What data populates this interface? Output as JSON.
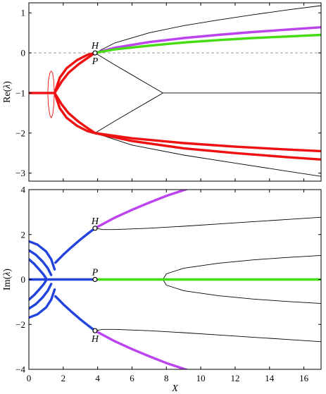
{
  "colors": {
    "black_branch": "#000000",
    "red": "#ee1111",
    "purple": "#bb44ee",
    "green": "#44dd11",
    "blue": "#2244dd",
    "zero_line": "#888888"
  },
  "chart_data": [
    {
      "type": "line",
      "ylabel_prefix": "Re(",
      "ylabel_symbol": "λ",
      "ylabel_suffix": ")",
      "xlim": [
        0,
        17
      ],
      "ylim": [
        -3.2,
        1.25
      ],
      "xticks": [
        0,
        2,
        4,
        6,
        8,
        10,
        12,
        14,
        16
      ],
      "yticks": [
        1,
        0,
        -1,
        -2,
        -3
      ],
      "ytick_labels": [
        "1",
        "0",
        "−1",
        "−2",
        "−3"
      ],
      "reference_line": {
        "y": 0,
        "style": "dashed"
      },
      "annotations": [
        {
          "text": "H",
          "x": 3.85,
          "y": 0,
          "position": "above"
        },
        {
          "text": "P",
          "x": 3.85,
          "y": 0,
          "position": "below"
        }
      ],
      "markers": [
        {
          "x": 3.85,
          "y": 0,
          "shape": "open-circle"
        }
      ],
      "series": [
        {
          "color": "black",
          "width": "thin",
          "x": [
            3.85,
            5,
            7,
            9,
            11,
            13,
            15,
            17
          ],
          "y": [
            0,
            0.25,
            0.5,
            0.68,
            0.82,
            0.95,
            1.07,
            1.18
          ]
        },
        {
          "color": "purple",
          "width": "thick",
          "x": [
            3.85,
            5,
            7,
            9,
            11,
            13,
            15,
            17
          ],
          "y": [
            0,
            0.13,
            0.27,
            0.37,
            0.45,
            0.52,
            0.58,
            0.64
          ]
        },
        {
          "color": "green",
          "width": "thick",
          "x": [
            3.85,
            5,
            7,
            9,
            11,
            13,
            15,
            17
          ],
          "y": [
            0,
            0.09,
            0.18,
            0.26,
            0.32,
            0.37,
            0.41,
            0.45
          ]
        },
        {
          "color": "black",
          "width": "thin",
          "x": [
            3.85,
            5,
            6,
            7,
            7.8
          ],
          "y": [
            0,
            -0.3,
            -0.55,
            -0.8,
            -1.0
          ]
        },
        {
          "color": "black",
          "width": "thin",
          "x": [
            3.85,
            5,
            6,
            7,
            7.8
          ],
          "y": [
            -2,
            -1.7,
            -1.45,
            -1.2,
            -1.0
          ]
        },
        {
          "color": "black",
          "width": "thin",
          "x": [
            7.8,
            17
          ],
          "y": [
            -1,
            -1
          ]
        },
        {
          "color": "black",
          "width": "thin",
          "x": [
            3.85,
            6,
            9,
            12,
            15,
            17
          ],
          "y": [
            -2,
            -2.3,
            -2.55,
            -2.75,
            -2.95,
            -3.08
          ]
        },
        {
          "color": "red",
          "width": "thick",
          "x": [
            3.85,
            6,
            9,
            12,
            15,
            17
          ],
          "y": [
            -2,
            -2.13,
            -2.25,
            -2.34,
            -2.41,
            -2.45
          ]
        },
        {
          "color": "red",
          "width": "thick",
          "x": [
            3.85,
            6,
            9,
            12,
            15,
            17
          ],
          "y": [
            -2,
            -2.2,
            -2.38,
            -2.5,
            -2.6,
            -2.66
          ]
        },
        {
          "color": "red",
          "width": "thick",
          "x": [
            0,
            1.5
          ],
          "y": [
            -1,
            -1
          ]
        },
        {
          "color": "red",
          "width": "thick",
          "x": [
            1.5,
            1.8,
            2.2,
            2.8,
            3.4,
            3.85
          ],
          "y": [
            -1,
            -0.62,
            -0.38,
            -0.18,
            -0.05,
            0
          ]
        },
        {
          "color": "red",
          "width": "thick",
          "x": [
            1.5,
            1.9,
            2.3,
            2.9,
            3.5,
            3.85
          ],
          "y": [
            -1,
            -0.72,
            -0.5,
            -0.28,
            -0.1,
            0
          ]
        },
        {
          "color": "red",
          "width": "thick",
          "x": [
            1.5,
            1.8,
            2.2,
            2.8,
            3.4,
            3.85
          ],
          "y": [
            -1,
            -1.38,
            -1.62,
            -1.82,
            -1.95,
            -2
          ]
        },
        {
          "color": "red",
          "width": "thick",
          "x": [
            1.5,
            1.9,
            2.3,
            2.9,
            3.5,
            3.85
          ],
          "y": [
            -1,
            -1.28,
            -1.5,
            -1.72,
            -1.9,
            -2
          ]
        },
        {
          "color": "red",
          "width": "thin",
          "x": [
            1.1,
            1.13,
            1.22,
            1.3,
            1.38,
            1.45,
            1.48,
            1.45,
            1.38,
            1.3,
            1.22,
            1.13,
            1.1
          ],
          "y": [
            -1,
            -0.7,
            -0.5,
            -0.45,
            -0.5,
            -0.7,
            -1,
            -1.3,
            -1.55,
            -1.62,
            -1.55,
            -1.3,
            -1
          ]
        }
      ]
    },
    {
      "type": "line",
      "xlabel": "X",
      "ylabel_prefix": "Im(",
      "ylabel_symbol": "λ",
      "ylabel_suffix": ")",
      "xlim": [
        0,
        17
      ],
      "ylim": [
        -4,
        4
      ],
      "xticks": [
        0,
        2,
        4,
        6,
        8,
        10,
        12,
        14,
        16
      ],
      "xtick_labels": [
        "0",
        "2",
        "4",
        "6",
        "8",
        "10",
        "12",
        "14",
        "16"
      ],
      "yticks": [
        4,
        2,
        0,
        -2,
        -4
      ],
      "ytick_labels": [
        "4",
        "2",
        "0",
        "−2",
        "−4"
      ],
      "annotations": [
        {
          "text": "H",
          "x": 3.85,
          "y": 2.28,
          "position": "above"
        },
        {
          "text": "P",
          "x": 3.85,
          "y": 0,
          "position": "above"
        },
        {
          "text": "H",
          "x": 3.85,
          "y": -2.28,
          "position": "below"
        }
      ],
      "markers": [
        {
          "x": 3.85,
          "y": 2.28,
          "shape": "open-circle"
        },
        {
          "x": 3.85,
          "y": 0,
          "shape": "open-circle"
        },
        {
          "x": 3.85,
          "y": -2.28,
          "shape": "open-circle"
        }
      ],
      "series": [
        {
          "color": "purple",
          "width": "thick",
          "x": [
            3.85,
            5,
            6,
            7,
            8,
            9.3
          ],
          "y": [
            2.28,
            2.75,
            3.1,
            3.42,
            3.72,
            4.05
          ]
        },
        {
          "color": "purple",
          "width": "thick",
          "x": [
            3.85,
            5,
            6,
            7,
            8,
            9.3
          ],
          "y": [
            -2.28,
            -2.75,
            -3.1,
            -3.42,
            -3.72,
            -4.05
          ]
        },
        {
          "color": "black",
          "width": "thin",
          "x": [
            3.85,
            4.3,
            5,
            7,
            9,
            11,
            13,
            15,
            17
          ],
          "y": [
            2.28,
            2.22,
            2.22,
            2.28,
            2.37,
            2.47,
            2.57,
            2.67,
            2.77
          ]
        },
        {
          "color": "black",
          "width": "thin",
          "x": [
            3.85,
            4.3,
            5,
            7,
            9,
            11,
            13,
            15,
            17
          ],
          "y": [
            -2.28,
            -2.22,
            -2.22,
            -2.28,
            -2.37,
            -2.47,
            -2.57,
            -2.67,
            -2.77
          ]
        },
        {
          "color": "black",
          "width": "thin",
          "x": [
            7.8,
            8,
            9,
            11,
            13,
            15,
            17
          ],
          "y": [
            0,
            0.25,
            0.5,
            0.72,
            0.87,
            0.98,
            1.07
          ]
        },
        {
          "color": "black",
          "width": "thin",
          "x": [
            7.8,
            8,
            9,
            11,
            13,
            15,
            17
          ],
          "y": [
            0,
            -0.25,
            -0.5,
            -0.72,
            -0.87,
            -0.98,
            -1.07
          ]
        },
        {
          "color": "black",
          "width": "thin",
          "x": [
            3.85,
            7.8
          ],
          "y": [
            0,
            0
          ]
        },
        {
          "color": "green",
          "width": "thick",
          "x": [
            3.85,
            17
          ],
          "y": [
            0,
            0
          ]
        },
        {
          "color": "blue",
          "width": "thick",
          "x": [
            0,
            3.85
          ],
          "y": [
            0,
            0
          ]
        },
        {
          "color": "blue",
          "width": "thick",
          "x": [
            1.55,
            2,
            2.5,
            3,
            3.5,
            3.85
          ],
          "y": [
            0.75,
            1.1,
            1.45,
            1.78,
            2.08,
            2.28
          ]
        },
        {
          "color": "blue",
          "width": "thick",
          "x": [
            1.55,
            2,
            2.5,
            3,
            3.5,
            3.85
          ],
          "y": [
            -0.75,
            -1.1,
            -1.45,
            -1.78,
            -2.08,
            -2.28
          ]
        },
        {
          "color": "blue",
          "width": "thick",
          "x": [
            0,
            0.5,
            1,
            1.3,
            1.5
          ],
          "y": [
            1.7,
            1.55,
            1.25,
            0.9,
            0.45
          ]
        },
        {
          "color": "blue",
          "width": "thick",
          "x": [
            0,
            0.5,
            1,
            1.3,
            1.5
          ],
          "y": [
            -1.7,
            -1.55,
            -1.25,
            -0.9,
            -0.45
          ]
        },
        {
          "color": "blue",
          "width": "thick",
          "x": [
            0,
            0.4,
            0.8,
            1.1,
            1.3
          ],
          "y": [
            1.3,
            1.1,
            0.8,
            0.5,
            0.2
          ]
        },
        {
          "color": "blue",
          "width": "thick",
          "x": [
            0,
            0.4,
            0.8,
            1.1,
            1.3
          ],
          "y": [
            -1.3,
            -1.1,
            -0.8,
            -0.5,
            -0.2
          ]
        },
        {
          "color": "blue",
          "width": "thick",
          "x": [
            0,
            0.3,
            0.6,
            0.85,
            1.0
          ],
          "y": [
            0.9,
            0.7,
            0.45,
            0.22,
            0.05
          ]
        },
        {
          "color": "blue",
          "width": "thick",
          "x": [
            0,
            0.3,
            0.6,
            0.85,
            1.0
          ],
          "y": [
            -0.9,
            -0.7,
            -0.45,
            -0.22,
            -0.05
          ]
        }
      ]
    }
  ]
}
